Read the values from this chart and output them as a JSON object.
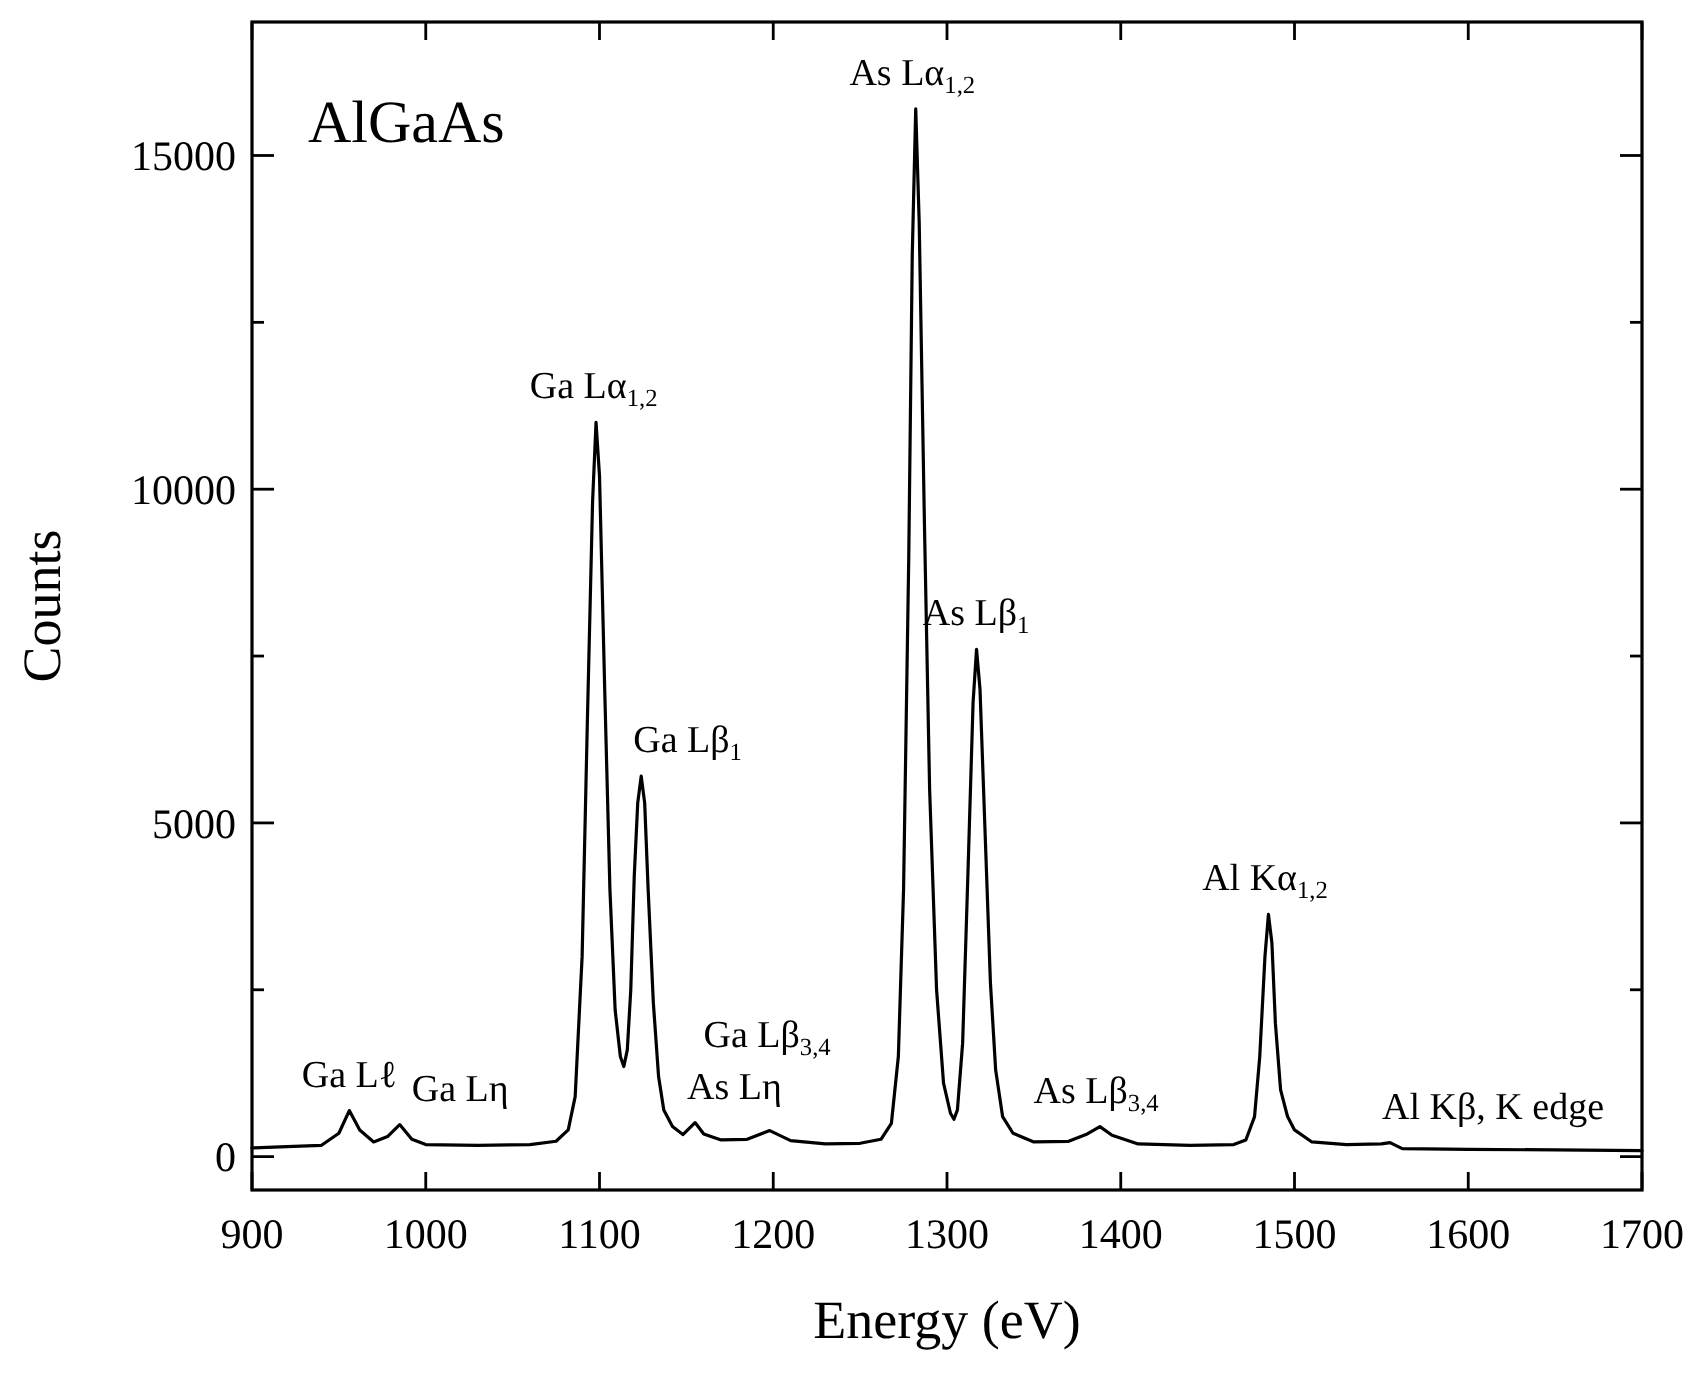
{
  "chart_data": {
    "type": "line",
    "xlabel": "Energy (eV)",
    "ylabel": "Counts",
    "xlim": [
      900,
      1700
    ],
    "xticks": [
      900,
      1000,
      1100,
      1200,
      1300,
      1400,
      1500,
      1600,
      1700
    ],
    "ylim": [
      -500,
      17000
    ],
    "yticks": [
      0,
      {
        "value": 2500,
        "label": null
      },
      5000,
      {
        "value": 7500,
        "label": null
      },
      10000,
      {
        "value": 12500,
        "label": null
      },
      15000
    ],
    "grid": false,
    "marker": "none",
    "line_style": "solid",
    "series": [
      {
        "color": "#000000",
        "x": [
          900,
          920,
          940,
          950,
          956,
          962,
          970,
          978,
          985,
          992,
          1000,
          1030,
          1060,
          1075,
          1082,
          1086,
          1090,
          1093,
          1096,
          1098,
          1100,
          1103,
          1106,
          1109,
          1112,
          1114,
          1116,
          1118,
          1120,
          1122,
          1124,
          1126,
          1128,
          1131,
          1134,
          1137,
          1142,
          1148,
          1155,
          1160,
          1170,
          1185,
          1198,
          1210,
          1230,
          1250,
          1262,
          1268,
          1272,
          1275,
          1278,
          1280,
          1282,
          1284,
          1287,
          1290,
          1294,
          1298,
          1302,
          1304,
          1306,
          1309,
          1312,
          1315,
          1317,
          1319,
          1322,
          1325,
          1328,
          1332,
          1338,
          1350,
          1370,
          1380,
          1388,
          1395,
          1410,
          1440,
          1465,
          1472,
          1477,
          1480,
          1483,
          1485,
          1487,
          1489,
          1492,
          1496,
          1500,
          1510,
          1530,
          1550,
          1555,
          1562,
          1600,
          1650,
          1700
        ],
        "values": [
          130,
          150,
          170,
          350,
          690,
          400,
          220,
          300,
          480,
          260,
          180,
          170,
          180,
          230,
          400,
          900,
          3000,
          6500,
          9800,
          11000,
          10200,
          7000,
          4000,
          2200,
          1500,
          1350,
          1600,
          2500,
          4200,
          5300,
          5700,
          5300,
          4000,
          2300,
          1200,
          700,
          450,
          330,
          510,
          340,
          250,
          260,
          390,
          240,
          190,
          200,
          260,
          500,
          1500,
          4000,
          9000,
          13500,
          15700,
          14000,
          9500,
          5500,
          2500,
          1100,
          650,
          560,
          700,
          1700,
          4200,
          6800,
          7600,
          7000,
          4800,
          2600,
          1300,
          600,
          350,
          220,
          230,
          330,
          450,
          320,
          190,
          170,
          180,
          250,
          600,
          1500,
          3000,
          3630,
          3200,
          2000,
          1000,
          600,
          400,
          220,
          180,
          190,
          210,
          120,
          110,
          100,
          90
        ]
      }
    ],
    "annotations": [
      "AlGaAs",
      {
        "text": "Ga Lℓ",
        "x": 956,
        "y": 690
      },
      {
        "text": "Ga Lη",
        "x": 985,
        "y": 480
      },
      {
        "text": "Ga Lα$_{1,2}$",
        "x": 1098,
        "y": 11000
      },
      {
        "text": "Ga Lβ$_{1}$",
        "x": 1124,
        "y": 5700
      },
      {
        "text": "As Lη",
        "x": 1155,
        "y": 510
      },
      {
        "text": "Ga Lβ$_{3,4}$",
        "x": 1198,
        "y": 390
      },
      {
        "text": "As Lα$_{1,2}$",
        "x": 1282,
        "y": 15700
      },
      {
        "text": "As Lβ$_{1}$",
        "x": 1317,
        "y": 7600
      },
      {
        "text": "As Lβ$_{3,4}$",
        "x": 1388,
        "y": 450
      },
      {
        "text": "Al Kα$_{1,2}$",
        "x": 1485,
        "y": 3630
      },
      {
        "text": "Al Kβ, K edge",
        "x": 1555,
        "y": 210
      }
    ]
  }
}
